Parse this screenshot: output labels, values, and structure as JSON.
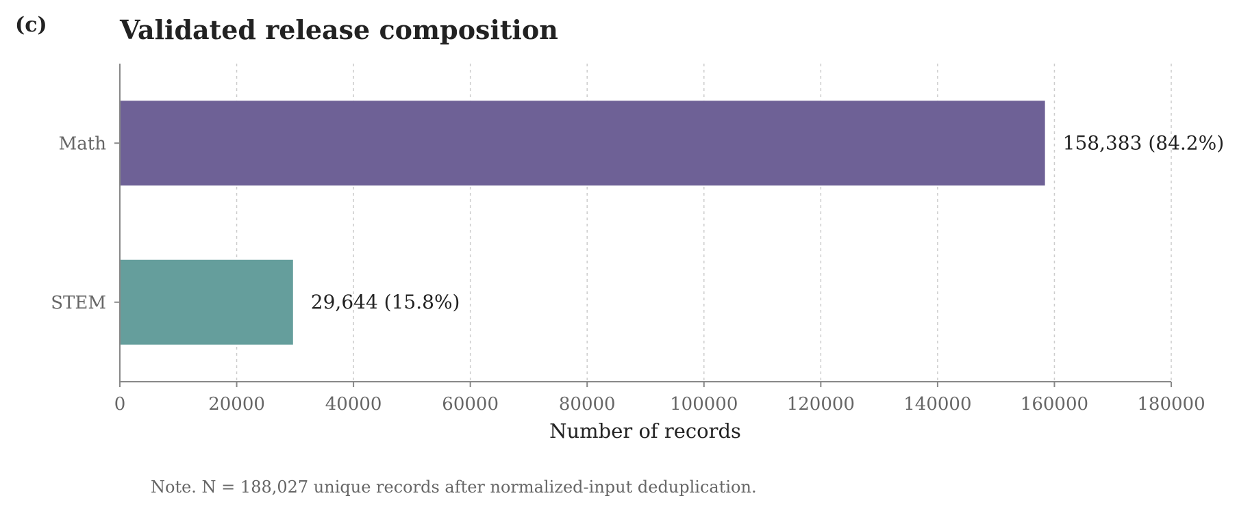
{
  "panel_label": "(c)",
  "note": "Note. N = 188,027 unique records after normalized-input deduplication.",
  "chart_data": {
    "type": "bar",
    "orientation": "horizontal",
    "title": "Validated release composition",
    "xlabel": "Number of records",
    "ylabel": "",
    "xlim": [
      0,
      180000
    ],
    "x_ticks": [
      0,
      20000,
      40000,
      60000,
      80000,
      100000,
      120000,
      140000,
      160000,
      180000
    ],
    "x_tick_labels": [
      "0",
      "20000",
      "40000",
      "60000",
      "80000",
      "100000",
      "120000",
      "140000",
      "160000",
      "180000"
    ],
    "grid": "vertical dashed",
    "categories": [
      "Math",
      "STEM"
    ],
    "values": [
      158383,
      29644
    ],
    "value_labels": [
      "158,383  (84.2%)",
      "29,644  (15.8%)"
    ],
    "colors": [
      "#6e6196",
      "#659e9c"
    ]
  }
}
